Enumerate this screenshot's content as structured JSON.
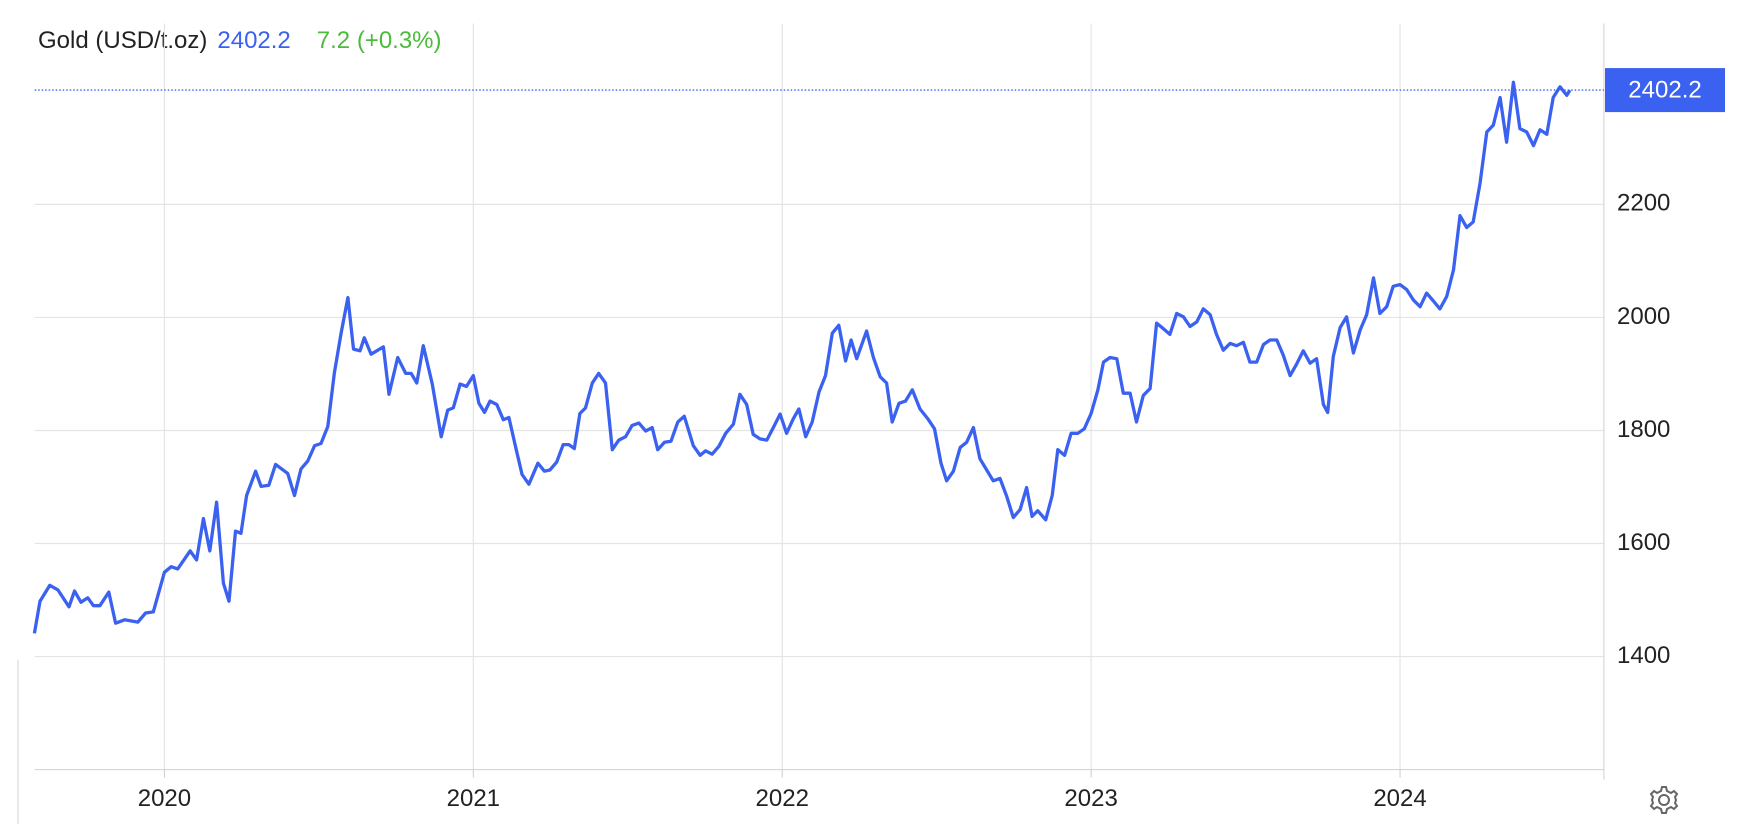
{
  "chart_data": {
    "type": "line",
    "title": "Gold (USD/t.oz)",
    "change": "7.2 (+0.3%)",
    "change_color": "#4cbb3c",
    "xlim": [
      2019.58,
      2024.66
    ],
    "ylim": [
      1200,
      2520
    ],
    "xticks": [
      2020,
      2021,
      2022,
      2023,
      2024
    ],
    "yticks": [
      1400,
      1600,
      1800,
      2000,
      2200
    ],
    "grid": true,
    "x": [
      2019.579,
      2019.597,
      2019.629,
      2019.655,
      2019.691,
      2019.709,
      2019.73,
      2019.752,
      2019.77,
      2019.791,
      2019.82,
      2019.842,
      2019.871,
      2019.914,
      2019.939,
      2019.964,
      2020.0,
      2020.022,
      2020.043,
      2020.083,
      2020.104,
      2020.126,
      2020.147,
      2020.169,
      2020.191,
      2020.209,
      2020.23,
      2020.248,
      2020.266,
      2020.295,
      2020.313,
      2020.338,
      2020.36,
      2020.399,
      2020.421,
      2020.442,
      2020.464,
      2020.486,
      2020.507,
      2020.529,
      2020.55,
      2020.572,
      2020.594,
      2020.612,
      2020.633,
      2020.647,
      2020.669,
      2020.709,
      2020.727,
      2020.755,
      2020.781,
      2020.799,
      2020.817,
      2020.838,
      2020.867,
      2020.896,
      2020.917,
      2020.935,
      2020.957,
      2020.978,
      2021.0,
      2021.018,
      2021.036,
      2021.054,
      2021.076,
      2021.097,
      2021.115,
      2021.137,
      2021.158,
      2021.18,
      2021.209,
      2021.23,
      2021.248,
      2021.27,
      2021.291,
      2021.309,
      2021.327,
      2021.345,
      2021.363,
      2021.385,
      2021.406,
      2021.428,
      2021.45,
      2021.471,
      2021.493,
      2021.514,
      2021.536,
      2021.558,
      2021.579,
      2021.597,
      2021.619,
      2021.64,
      2021.662,
      2021.683,
      2021.712,
      2021.734,
      2021.752,
      2021.773,
      2021.795,
      2021.817,
      2021.842,
      2021.863,
      2021.885,
      2021.906,
      2021.928,
      2021.95,
      2021.971,
      2021.993,
      2022.014,
      2022.036,
      2022.054,
      2022.076,
      2022.097,
      2022.119,
      2022.14,
      2022.162,
      2022.183,
      2022.205,
      2022.223,
      2022.241,
      2022.273,
      2022.295,
      2022.317,
      2022.338,
      2022.356,
      2022.378,
      2022.399,
      2022.421,
      2022.446,
      2022.471,
      2022.493,
      2022.514,
      2022.532,
      2022.554,
      2022.576,
      2022.597,
      2022.619,
      2022.64,
      2022.662,
      2022.683,
      2022.705,
      2022.727,
      2022.748,
      2022.77,
      2022.791,
      2022.809,
      2022.827,
      2022.853,
      2022.874,
      2022.892,
      2022.914,
      2022.935,
      2022.957,
      2022.978,
      2023.0,
      2023.022,
      2023.04,
      2023.061,
      2023.083,
      2023.104,
      2023.126,
      2023.147,
      2023.169,
      2023.191,
      2023.212,
      2023.234,
      2023.255,
      2023.277,
      2023.299,
      2023.32,
      2023.342,
      2023.363,
      2023.385,
      2023.406,
      2023.428,
      2023.45,
      2023.471,
      2023.493,
      2023.514,
      2023.536,
      2023.558,
      2023.579,
      2023.601,
      2023.622,
      2023.644,
      2023.665,
      2023.687,
      2023.709,
      2023.73,
      2023.752,
      2023.766,
      2023.784,
      2023.806,
      2023.827,
      2023.849,
      2023.871,
      2023.892,
      2023.914,
      2023.935,
      2023.957,
      2023.978,
      2024.0,
      2024.022,
      2024.043,
      2024.065,
      2024.086,
      2024.108,
      2024.129,
      2024.151,
      2024.173,
      2024.194,
      2024.216,
      2024.237,
      2024.259,
      2024.281,
      2024.302,
      2024.324,
      2024.345,
      2024.367,
      2024.388,
      2024.41,
      2024.432,
      2024.453,
      2024.475,
      2024.496,
      2024.518,
      2024.54,
      2024.55
    ],
    "series": [
      {
        "name": "Gold",
        "color": "#3b61f0",
        "values": [
          1441,
          1498,
          1526,
          1518,
          1488,
          1516,
          1496,
          1504,
          1490,
          1490,
          1514,
          1459,
          1465,
          1461,
          1477,
          1479,
          1549,
          1559,
          1555,
          1587,
          1571,
          1644,
          1587,
          1673,
          1530,
          1498,
          1622,
          1618,
          1685,
          1728,
          1701,
          1703,
          1740,
          1724,
          1685,
          1732,
          1746,
          1773,
          1777,
          1807,
          1901,
          1972,
          2035,
          1944,
          1941,
          1964,
          1935,
          1948,
          1864,
          1929,
          1901,
          1901,
          1884,
          1950,
          1882,
          1789,
          1836,
          1840,
          1882,
          1878,
          1897,
          1848,
          1832,
          1852,
          1846,
          1819,
          1823,
          1770,
          1722,
          1705,
          1742,
          1728,
          1730,
          1744,
          1775,
          1775,
          1768,
          1830,
          1840,
          1884,
          1901,
          1884,
          1766,
          1783,
          1789,
          1809,
          1813,
          1799,
          1805,
          1766,
          1779,
          1781,
          1815,
          1825,
          1773,
          1756,
          1764,
          1758,
          1772,
          1795,
          1811,
          1864,
          1846,
          1793,
          1785,
          1783,
          1805,
          1829,
          1795,
          1821,
          1838,
          1789,
          1815,
          1868,
          1897,
          1972,
          1986,
          1923,
          1960,
          1927,
          1976,
          1929,
          1895,
          1884,
          1815,
          1848,
          1852,
          1872,
          1838,
          1821,
          1803,
          1742,
          1711,
          1728,
          1770,
          1779,
          1805,
          1750,
          1730,
          1711,
          1715,
          1683,
          1646,
          1660,
          1699,
          1648,
          1658,
          1642,
          1685,
          1766,
          1756,
          1795,
          1795,
          1803,
          1830,
          1872,
          1921,
          1929,
          1927,
          1866,
          1866,
          1815,
          1862,
          1874,
          1990,
          1980,
          1970,
          2007,
          2001,
          1984,
          1992,
          2015,
          2005,
          1970,
          1942,
          1954,
          1950,
          1956,
          1921,
          1921,
          1952,
          1960,
          1960,
          1933,
          1897,
          1917,
          1941,
          1919,
          1927,
          1846,
          1832,
          1931,
          1982,
          2001,
          1937,
          1978,
          2005,
          2070,
          2007,
          2019,
          2055,
          2058,
          2049,
          2031,
          2019,
          2043,
          2029,
          2015,
          2037,
          2084,
          2180,
          2159,
          2169,
          2237,
          2328,
          2340,
          2389,
          2310,
          2416,
          2334,
          2328,
          2304,
          2332,
          2324,
          2389,
          2408,
          2393,
          2402.2
        ]
      }
    ]
  }
}
